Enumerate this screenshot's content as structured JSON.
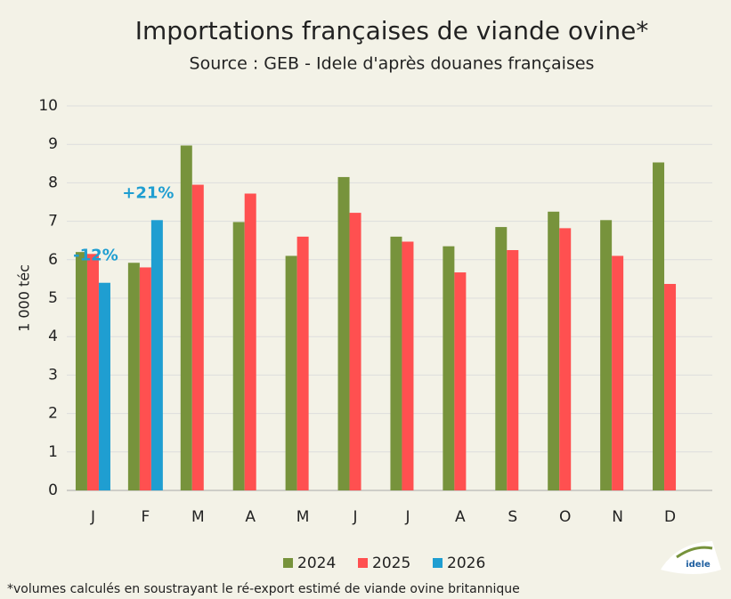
{
  "chart_data": {
    "type": "bar",
    "title": "Importations françaises de viande ovine*",
    "subtitle": "Source : GEB - Idele d'après douanes françaises",
    "y_label": "1 000 téc",
    "footnote": "*volumes calculés en soustrayant le ré-export estimé de viande ovine britannique",
    "logo": "idele",
    "categories": [
      "J",
      "F",
      "M",
      "A",
      "M",
      "J",
      "J",
      "A",
      "S",
      "O",
      "N",
      "D"
    ],
    "series": [
      {
        "name": "2024",
        "color": "#77933c",
        "values": [
          6.2,
          5.92,
          8.97,
          6.98,
          6.1,
          8.15,
          6.6,
          6.35,
          6.85,
          7.25,
          7.03,
          8.53
        ]
      },
      {
        "name": "2025",
        "color": "#ff5050",
        "values": [
          6.15,
          5.8,
          7.95,
          7.72,
          6.6,
          7.22,
          6.47,
          5.67,
          6.25,
          6.82,
          6.1,
          5.37
        ]
      },
      {
        "name": "2026",
        "color": "#1f9ed1",
        "values": [
          5.4,
          7.03,
          null,
          null,
          null,
          null,
          null,
          null,
          null,
          null,
          null,
          null
        ]
      }
    ],
    "annotations": [
      "-12%",
      "+21%"
    ],
    "ylim": [
      0,
      10
    ],
    "yticks": [
      0,
      1,
      2,
      3,
      4,
      5,
      6,
      7,
      8,
      9,
      10
    ],
    "grid": true,
    "legend": "bottom"
  }
}
